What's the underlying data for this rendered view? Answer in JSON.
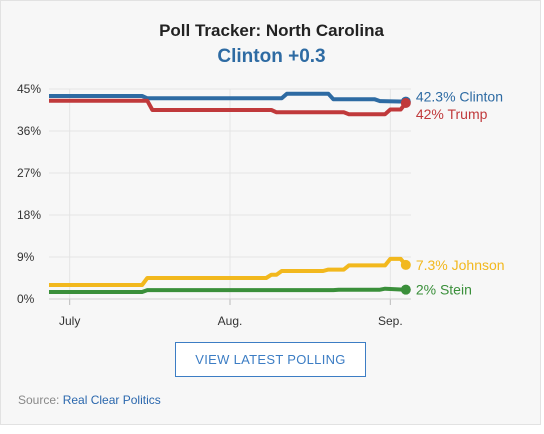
{
  "header": {
    "title": "Poll Tracker: North Carolina",
    "subtitle": "Clinton +0.3",
    "subtitle_color": "#2e6ba3"
  },
  "button": {
    "label": "VIEW LATEST POLLING"
  },
  "source": {
    "prefix": "Source:",
    "link_text": "Real Clear Politics"
  },
  "chart_data": {
    "type": "line",
    "y_ticks": [
      "45%",
      "36%",
      "27%",
      "18%",
      "9%",
      "0%"
    ],
    "y_tick_values": [
      45,
      36,
      27,
      18,
      9,
      0
    ],
    "ylim": [
      0,
      45
    ],
    "x_ticks": [
      "July",
      "Aug.",
      "Sep."
    ],
    "x_tick_values": [
      4,
      35,
      66
    ],
    "xlim": [
      0,
      70
    ],
    "grid": true,
    "series": [
      {
        "name": "Clinton",
        "end_label": "42.3% Clinton",
        "color": "#2e6ba3",
        "points": [
          [
            0,
            43.5
          ],
          [
            18,
            43.5
          ],
          [
            19,
            43.0
          ],
          [
            45,
            43.0
          ],
          [
            46,
            44.0
          ],
          [
            54,
            44.0
          ],
          [
            55,
            42.8
          ],
          [
            63,
            42.8
          ],
          [
            64,
            42.4
          ],
          [
            69,
            42.3
          ]
        ]
      },
      {
        "name": "Trump",
        "end_label": "42% Trump",
        "color": "#c0393b",
        "points": [
          [
            0,
            42.5
          ],
          [
            19,
            42.5
          ],
          [
            20,
            40.5
          ],
          [
            43,
            40.5
          ],
          [
            44,
            40.0
          ],
          [
            57,
            40.0
          ],
          [
            58,
            39.6
          ],
          [
            65,
            39.6
          ],
          [
            66,
            40.6
          ],
          [
            68,
            40.6
          ],
          [
            69,
            42.0
          ]
        ]
      },
      {
        "name": "Johnson",
        "end_label": "7.3% Johnson",
        "color": "#f2b81d",
        "points": [
          [
            0,
            3.0
          ],
          [
            18,
            3.0
          ],
          [
            19,
            4.5
          ],
          [
            42,
            4.5
          ],
          [
            43,
            5.2
          ],
          [
            44,
            5.2
          ],
          [
            45,
            6.0
          ],
          [
            53,
            6.0
          ],
          [
            54,
            6.3
          ],
          [
            57,
            6.3
          ],
          [
            58,
            7.2
          ],
          [
            65,
            7.2
          ],
          [
            66,
            8.6
          ],
          [
            68,
            8.6
          ],
          [
            69,
            7.3
          ]
        ]
      },
      {
        "name": "Stein",
        "end_label": "2% Stein",
        "color": "#3a8f3a",
        "points": [
          [
            0,
            1.5
          ],
          [
            18,
            1.5
          ],
          [
            19,
            1.9
          ],
          [
            55,
            1.9
          ],
          [
            56,
            2.0
          ],
          [
            64,
            2.0
          ],
          [
            65,
            2.2
          ],
          [
            69,
            2.0
          ]
        ]
      }
    ]
  }
}
